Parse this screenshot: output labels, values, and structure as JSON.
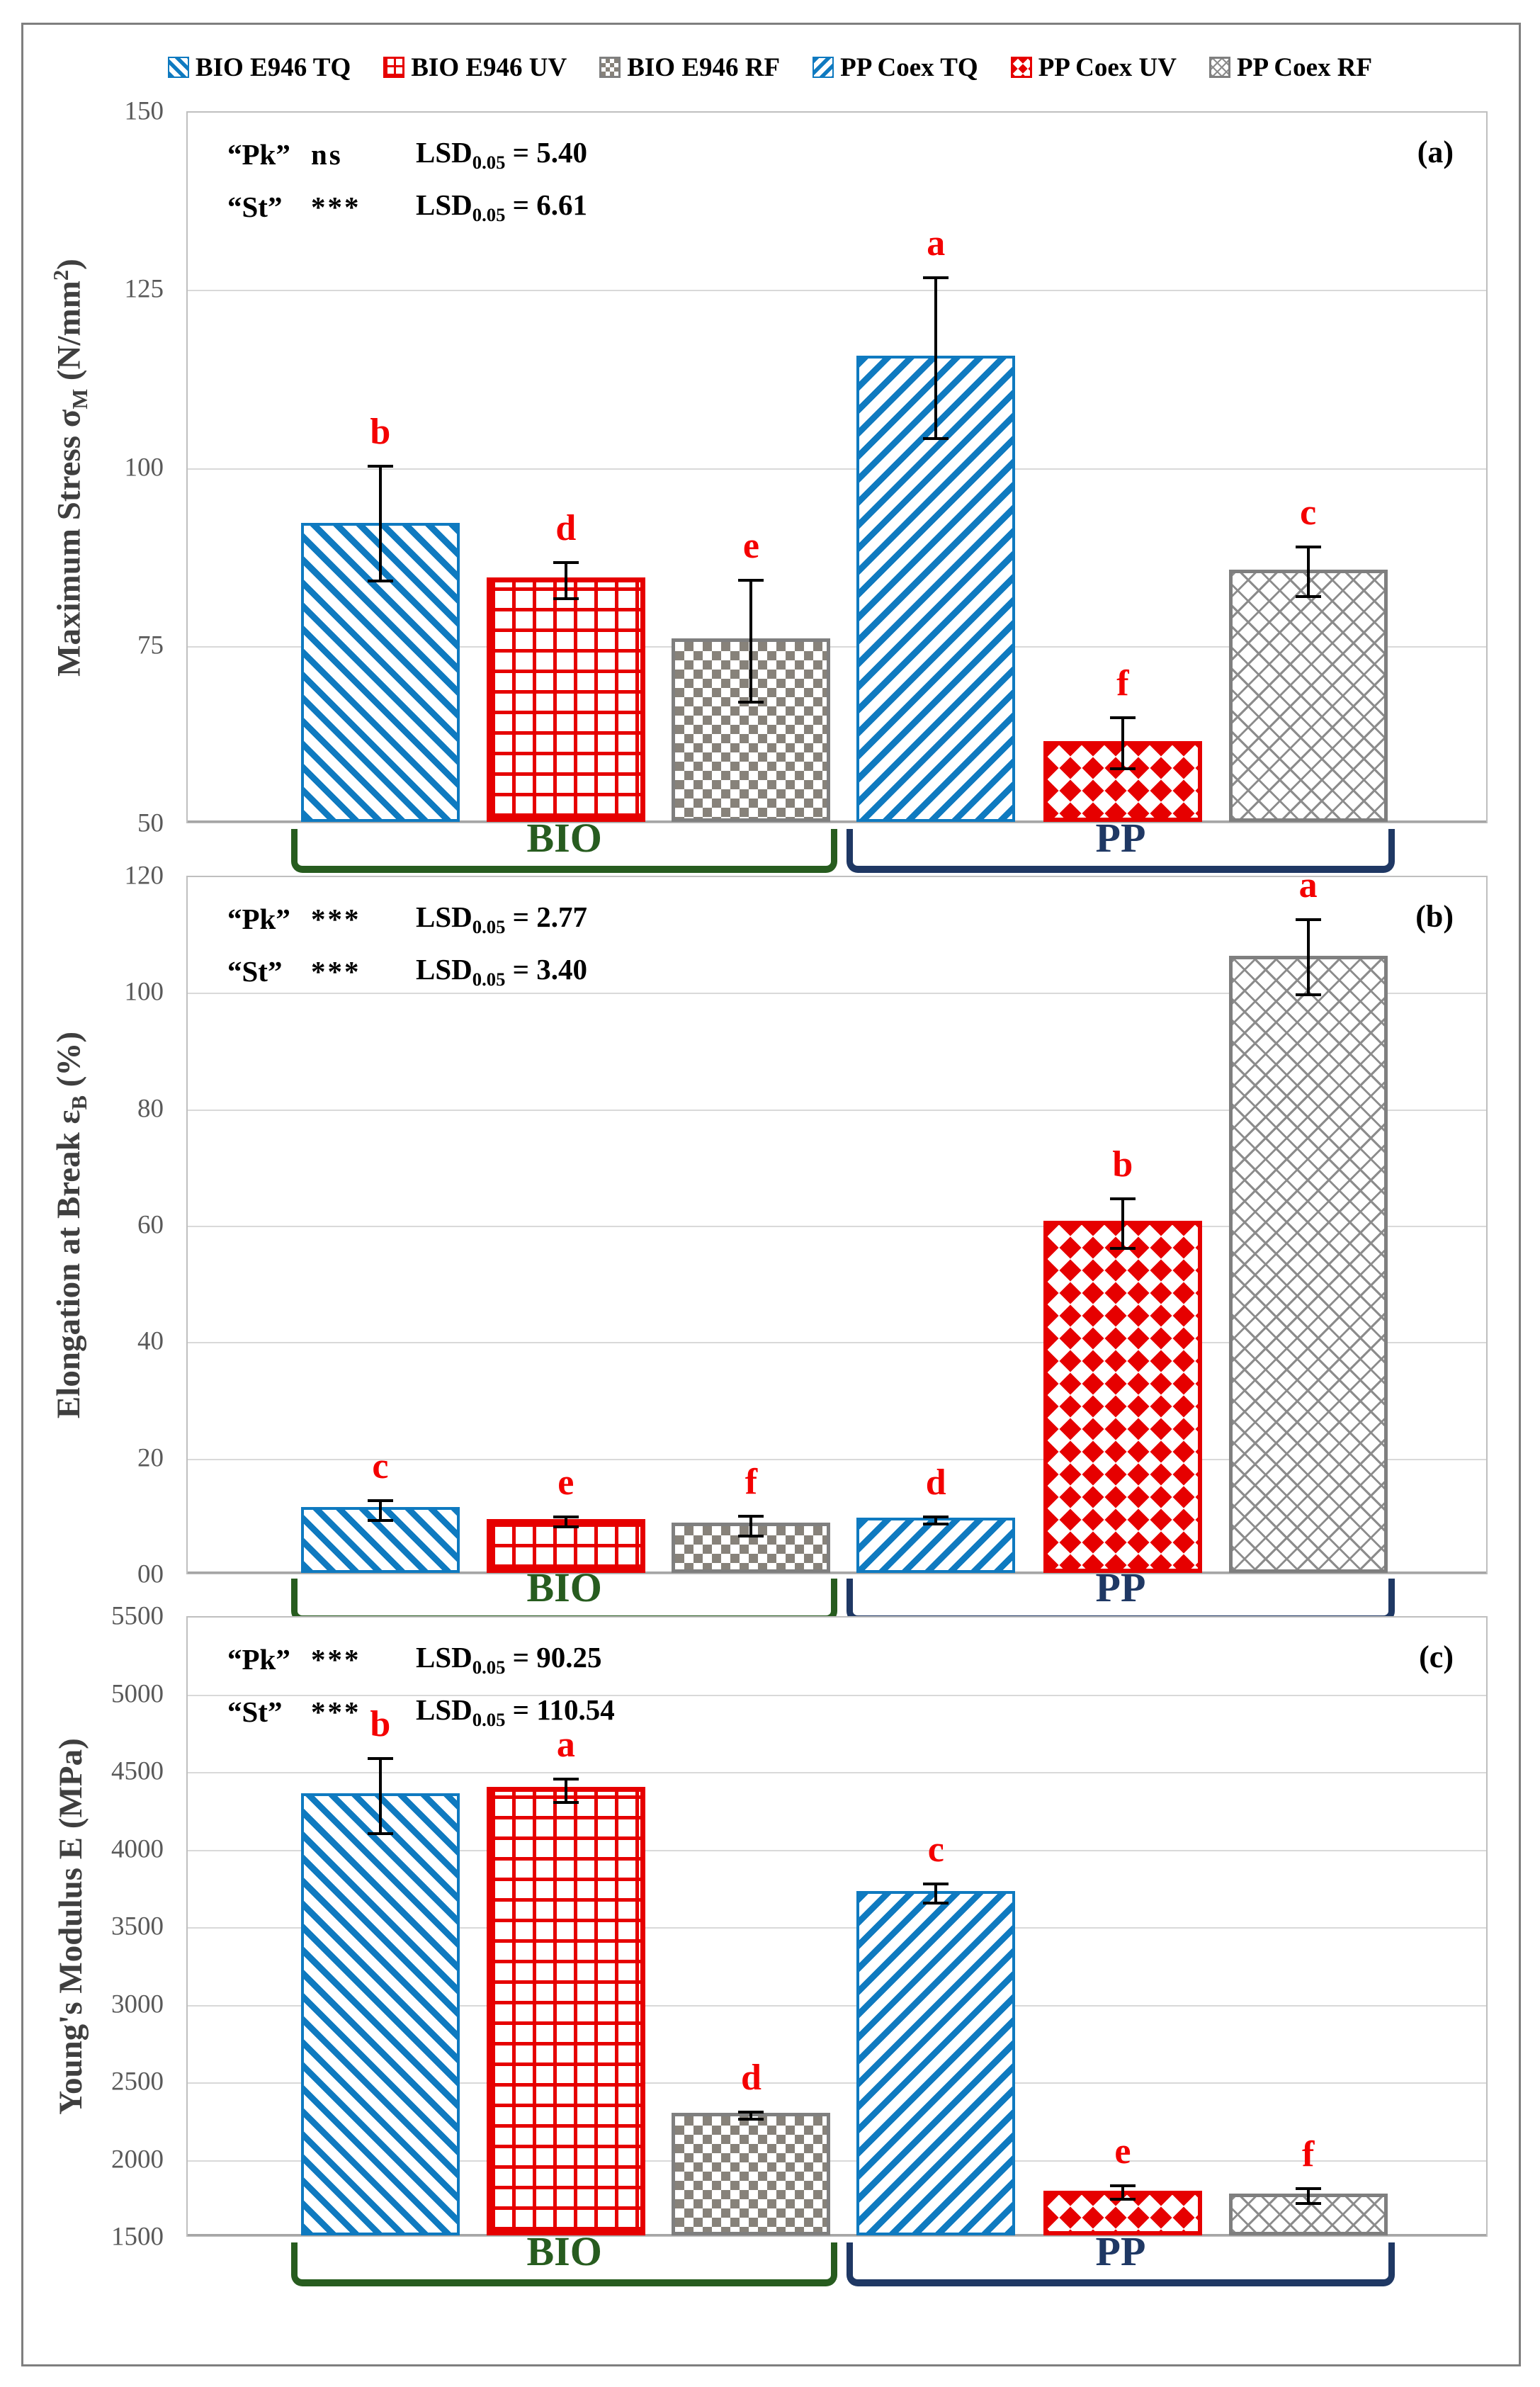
{
  "colors": {
    "blue": "#0f7ac0",
    "red": "#e60000",
    "gray": "#7f7f7f",
    "letter_red": "#f40000",
    "bio_green": "#275c1f",
    "pp_navy": "#1f3864",
    "tick_gray": "#595959"
  },
  "legend": {
    "items": [
      {
        "label": "BIO E946 TQ",
        "pattern": "bio-tq"
      },
      {
        "label": "BIO E946 UV",
        "pattern": "bio-uv"
      },
      {
        "label": "BIO E946 RF",
        "pattern": "bio-rf"
      },
      {
        "label": "PP Coex TQ",
        "pattern": "pp-tq"
      },
      {
        "label": "PP Coex UV",
        "pattern": "pp-uv"
      },
      {
        "label": "PP Coex RF",
        "pattern": "pp-rf"
      }
    ]
  },
  "chart_data": [
    {
      "type": "bar",
      "panel_label": "(a)",
      "ylabel_segments": [
        {
          "t": "Maximum Stress σ"
        },
        {
          "t": "M",
          "sub": true
        },
        {
          "t": " (N/mm"
        },
        {
          "t": "2",
          "sup": true
        },
        {
          "t": ")"
        }
      ],
      "ylim": [
        50,
        150
      ],
      "yticks": [
        {
          "v": 150,
          "label": "150"
        },
        {
          "v": 125,
          "label": "125"
        },
        {
          "v": 100,
          "label": "100"
        },
        {
          "v": 75,
          "label": "75"
        },
        {
          "v": 50,
          "label": "50"
        }
      ],
      "annotations": [
        {
          "q": "“Pk”",
          "sig": "ns",
          "stat": "LSD",
          "stat_sub": "0.05",
          "value": "5.40"
        },
        {
          "q": "“St”",
          "sig": "***",
          "stat": "LSD",
          "stat_sub": "0.05",
          "value": "6.61"
        }
      ],
      "series": [
        {
          "name": "BIO E946 TQ",
          "pattern": "bio-tq",
          "value": 92.0,
          "err_low": 84.0,
          "err_high": 100.5,
          "letter": "b"
        },
        {
          "name": "BIO E946 UV",
          "pattern": "bio-uv",
          "value": 84.3,
          "err_low": 81.5,
          "err_high": 87.0,
          "letter": "d"
        },
        {
          "name": "BIO E946 RF",
          "pattern": "bio-rf",
          "value": 75.8,
          "err_low": 67.0,
          "err_high": 84.5,
          "letter": "e"
        },
        {
          "name": "PP Coex TQ",
          "pattern": "pp-tq",
          "value": 115.5,
          "err_low": 104.0,
          "err_high": 127.0,
          "letter": "a"
        },
        {
          "name": "PP Coex UV",
          "pattern": "pp-uv",
          "value": 61.3,
          "err_low": 57.7,
          "err_high": 65.2,
          "letter": "f"
        },
        {
          "name": "PP Coex RF",
          "pattern": "pp-rf",
          "value": 85.4,
          "err_low": 81.8,
          "err_high": 89.2,
          "letter": "c"
        }
      ],
      "groups": [
        {
          "label": "BIO",
          "from": 0,
          "to": 2,
          "color_key": "bio_green"
        },
        {
          "label": "PP",
          "from": 3,
          "to": 5,
          "color_key": "pp_navy"
        }
      ]
    },
    {
      "type": "bar",
      "panel_label": "(b)",
      "ylabel_segments": [
        {
          "t": "Elongation at Break ε"
        },
        {
          "t": "B",
          "sub": true
        },
        {
          "t": " (%)"
        }
      ],
      "ylim": [
        0,
        120
      ],
      "yticks": [
        {
          "v": 120,
          "label": "120"
        },
        {
          "v": 100,
          "label": "100"
        },
        {
          "v": 80,
          "label": "80"
        },
        {
          "v": 60,
          "label": "60"
        },
        {
          "v": 40,
          "label": "40"
        },
        {
          "v": 20,
          "label": "20"
        },
        {
          "v": 0,
          "label": "00"
        }
      ],
      "annotations": [
        {
          "q": "“Pk”",
          "sig": "***",
          "stat": "LSD",
          "stat_sub": "0.05",
          "value": "2.77"
        },
        {
          "q": "“St”",
          "sig": "***",
          "stat": "LSD",
          "stat_sub": "0.05",
          "value": "3.40"
        }
      ],
      "series": [
        {
          "name": "BIO E946 TQ",
          "pattern": "bio-tq",
          "value": 11.3,
          "err_low": 9.3,
          "err_high": 13.2,
          "letter": "c"
        },
        {
          "name": "BIO E946 UV",
          "pattern": "bio-uv",
          "value": 9.2,
          "err_low": 8.1,
          "err_high": 10.3,
          "letter": "e"
        },
        {
          "name": "BIO E946 RF",
          "pattern": "bio-rf",
          "value": 8.6,
          "err_low": 6.6,
          "err_high": 10.5,
          "letter": "f"
        },
        {
          "name": "PP Coex TQ",
          "pattern": "pp-tq",
          "value": 9.5,
          "err_low": 8.6,
          "err_high": 10.4,
          "letter": "d"
        },
        {
          "name": "PP Coex UV",
          "pattern": "pp-uv",
          "value": 60.5,
          "err_low": 56.0,
          "err_high": 65.0,
          "letter": "b"
        },
        {
          "name": "PP Coex RF",
          "pattern": "pp-rf",
          "value": 106.0,
          "err_low": 99.5,
          "err_high": 113.0,
          "letter": "a"
        }
      ],
      "groups": [
        {
          "label": "BIO",
          "from": 0,
          "to": 2,
          "color_key": "bio_green"
        },
        {
          "label": "PP",
          "from": 3,
          "to": 5,
          "color_key": "pp_navy"
        }
      ]
    },
    {
      "type": "bar",
      "panel_label": "(c)",
      "ylabel_segments": [
        {
          "t": "Young's Modulus E (MPa)"
        }
      ],
      "ylim": [
        1500,
        5500
      ],
      "yticks": [
        {
          "v": 5500,
          "label": "5500"
        },
        {
          "v": 5000,
          "label": "5000"
        },
        {
          "v": 4500,
          "label": "4500"
        },
        {
          "v": 4000,
          "label": "4000"
        },
        {
          "v": 3500,
          "label": "3500"
        },
        {
          "v": 3000,
          "label": "3000"
        },
        {
          "v": 2500,
          "label": "2500"
        },
        {
          "v": 2000,
          "label": "2000"
        },
        {
          "v": 1500,
          "label": "1500"
        }
      ],
      "annotations": [
        {
          "q": "“Pk”",
          "sig": "***",
          "stat": "LSD",
          "stat_sub": "0.05",
          "value": "90.25"
        },
        {
          "q": "“St”",
          "sig": "***",
          "stat": "LSD",
          "stat_sub": "0.05",
          "value": "110.54"
        }
      ],
      "series": [
        {
          "name": "BIO E946 TQ",
          "pattern": "bio-tq",
          "value": 4350,
          "err_low": 4100,
          "err_high": 4600,
          "letter": "b"
        },
        {
          "name": "BIO E946 UV",
          "pattern": "bio-uv",
          "value": 4390,
          "err_low": 4300,
          "err_high": 4470,
          "letter": "a"
        },
        {
          "name": "BIO E946 RF",
          "pattern": "bio-rf",
          "value": 2290,
          "err_low": 2260,
          "err_high": 2320,
          "letter": "d"
        },
        {
          "name": "PP Coex TQ",
          "pattern": "pp-tq",
          "value": 3720,
          "err_low": 3650,
          "err_high": 3790,
          "letter": "c"
        },
        {
          "name": "PP Coex UV",
          "pattern": "pp-uv",
          "value": 1790,
          "err_low": 1740,
          "err_high": 1845,
          "letter": "e"
        },
        {
          "name": "PP Coex RF",
          "pattern": "pp-rf",
          "value": 1770,
          "err_low": 1715,
          "err_high": 1830,
          "letter": "f"
        }
      ],
      "groups": [
        {
          "label": "BIO",
          "from": 0,
          "to": 2,
          "color_key": "bio_green"
        },
        {
          "label": "PP",
          "from": 3,
          "to": 5,
          "color_key": "pp_navy"
        }
      ]
    }
  ]
}
